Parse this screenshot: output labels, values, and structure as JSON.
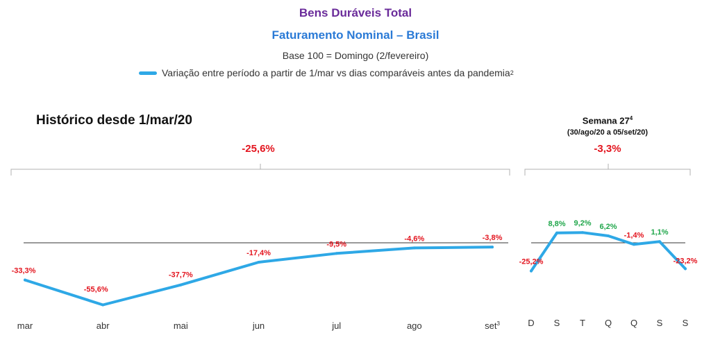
{
  "titles": {
    "main": "Bens Duráveis Total",
    "sub": "Faturamento Nominal – Brasil",
    "base": "Base 100 = Domingo (2/fevereiro)"
  },
  "legend": {
    "label": "Variação entre período a partir de 1/mar vs dias comparáveis antes da pandemia",
    "footnote": "2",
    "color": "#2ea8e6"
  },
  "history_panel": {
    "title": "Histórico desde 1/mar/20",
    "total_label": "-25,6%"
  },
  "week_panel": {
    "title": "Semana 27",
    "title_footnote": "4",
    "subtitle": "(30/ago/20 a 05/set/20)",
    "total_label": "-3,3%"
  },
  "colors": {
    "line": "#2ea8e6",
    "negative": "#e3141e",
    "positive": "#1fa64a",
    "baseline": "#333333",
    "bracket": "#b0b0b0"
  },
  "chart_data": [
    {
      "type": "line",
      "title": "Histórico desde 1/mar/20",
      "categories": [
        "mar",
        "abr",
        "mai",
        "jun",
        "jul",
        "ago",
        "set"
      ],
      "category_footnotes": [
        "",
        "",
        "",
        "",
        "",
        "",
        "3"
      ],
      "values": [
        -33.3,
        -55.6,
        -37.7,
        -17.4,
        -9.5,
        -4.6,
        -3.8
      ],
      "labels": [
        "-33,3%",
        "-55,6%",
        "-37,7%",
        "-17,4%",
        "-9,5%",
        "-4,6%",
        "-3,8%"
      ],
      "total_label": "-25,6%",
      "baseline": 0,
      "ylim": [
        -60,
        5
      ],
      "grid": false
    },
    {
      "type": "line",
      "title": "Semana 27",
      "categories": [
        "D",
        "S",
        "T",
        "Q",
        "Q",
        "S",
        "S"
      ],
      "values": [
        -25.2,
        8.8,
        9.2,
        6.2,
        -1.4,
        1.1,
        -23.2
      ],
      "labels": [
        "-25,2%",
        "8,8%",
        "9,2%",
        "6,2%",
        "-1,4%",
        "1,1%",
        "-23,2%"
      ],
      "total_label": "-3,3%",
      "baseline": 0,
      "ylim": [
        -30,
        12
      ],
      "grid": false
    }
  ]
}
